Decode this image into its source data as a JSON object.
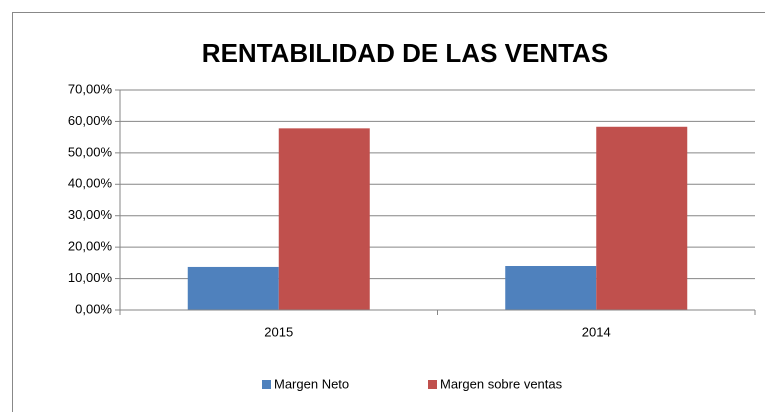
{
  "chart_data": {
    "type": "bar",
    "title": "RENTABILIDAD DE LAS VENTAS",
    "categories": [
      "2015",
      "2014"
    ],
    "series": [
      {
        "name": "Margen Neto",
        "color": "#4f81bd",
        "values": [
          13.7,
          14.0
        ]
      },
      {
        "name": "Margen sobre ventas",
        "color": "#c0504d",
        "values": [
          57.8,
          58.3
        ]
      }
    ],
    "ylim": [
      0,
      70
    ],
    "yticks": [
      {
        "value": 0,
        "label": "0,00%"
      },
      {
        "value": 10,
        "label": "10,00%"
      },
      {
        "value": 20,
        "label": "20,00%"
      },
      {
        "value": 30,
        "label": "30,00%"
      },
      {
        "value": 40,
        "label": "40,00%"
      },
      {
        "value": 50,
        "label": "50,00%"
      },
      {
        "value": 60,
        "label": "60,00%"
      },
      {
        "value": 70,
        "label": "70,00%"
      }
    ],
    "grid": true,
    "legend": "bottom"
  }
}
